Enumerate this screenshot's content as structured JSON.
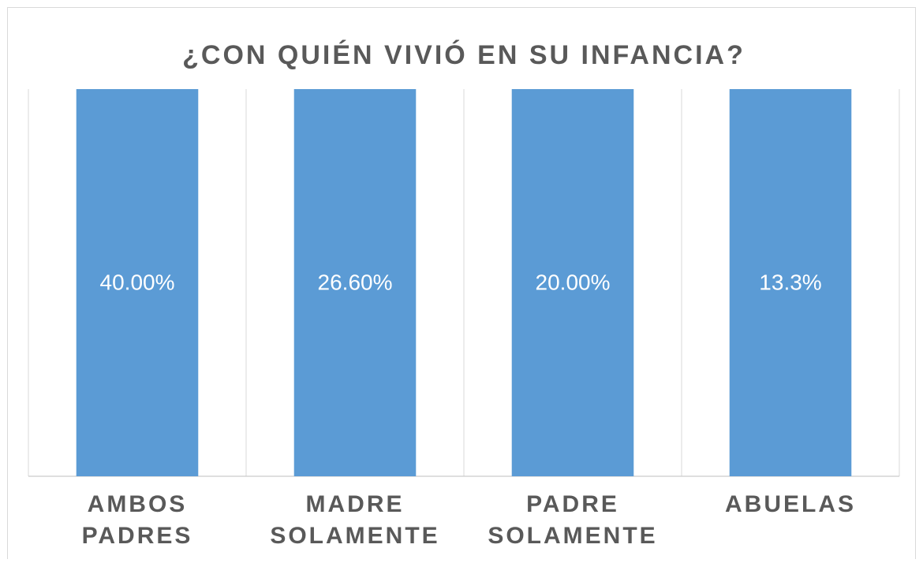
{
  "chart_data": {
    "type": "bar",
    "stacking": "percent",
    "title": "¿CON QUIÉN VIVIÓ EN SU INFANCIA?",
    "categories": [
      "AMBOS\nPADRES",
      "MADRE\nSOLAMENTE",
      "PADRE\nSOLAMENTE",
      "ABUELAS"
    ],
    "values": [
      40,
      26.6,
      20,
      13.3
    ],
    "value_labels": [
      "40.00%",
      "26.60%",
      "20.00%",
      "13.3%"
    ],
    "color": "#5b9bd5",
    "grid": true
  }
}
